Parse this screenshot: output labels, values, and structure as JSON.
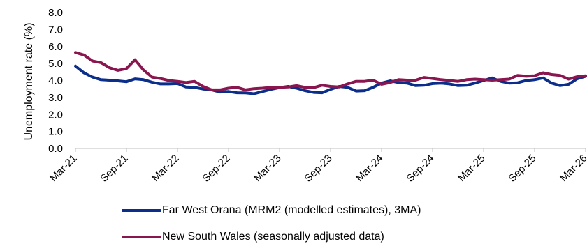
{
  "chart_data": {
    "type": "line",
    "title": "",
    "xlabel": "",
    "ylabel": "Unemployment rate (%)",
    "ylim": [
      0,
      8
    ],
    "yticks": [
      "0.0",
      "1.0",
      "2.0",
      "3.0",
      "4.0",
      "5.0",
      "6.0",
      "7.0",
      "8.0"
    ],
    "grid": false,
    "legend_position": "bottom",
    "x": [
      "Mar-21",
      "Apr-21",
      "May-21",
      "Jun-21",
      "Jul-21",
      "Aug-21",
      "Sep-21",
      "Oct-21",
      "Nov-21",
      "Dec-21",
      "Jan-22",
      "Feb-22",
      "Mar-22",
      "Apr-22",
      "May-22",
      "Jun-22",
      "Jul-22",
      "Aug-22",
      "Sep-22",
      "Oct-22",
      "Nov-22",
      "Dec-22",
      "Jan-23",
      "Feb-23",
      "Mar-23",
      "Apr-23",
      "May-23",
      "Jun-23",
      "Jul-23",
      "Aug-23",
      "Sep-23",
      "Oct-23",
      "Nov-23",
      "Dec-23",
      "Jan-24",
      "Feb-24",
      "Mar-24",
      "Apr-24",
      "May-24",
      "Jun-24",
      "Jul-24",
      "Aug-24",
      "Sep-24",
      "Oct-24",
      "Nov-24",
      "Dec-24",
      "Jan-25",
      "Feb-25",
      "Mar-25",
      "Apr-25",
      "May-25",
      "Jun-25",
      "Jul-25",
      "Aug-25",
      "Sep-25",
      "Oct-25",
      "Nov-25",
      "Dec-25",
      "Jan-26",
      "Feb-26",
      "Mar-26"
    ],
    "xtick_labels": [
      "Mar-21",
      "Sep-21",
      "Mar-22",
      "Sep-22",
      "Mar-23",
      "Sep-23",
      "Mar-24",
      "Sep-24",
      "Mar-25",
      "Sep-25",
      "Mar-26"
    ],
    "series": [
      {
        "name": "Far West Orana (MRM2 (modelled estimates), 3MA)",
        "color": "#0a2e8a",
        "values": [
          4.85,
          4.45,
          4.2,
          4.05,
          4.02,
          3.98,
          3.93,
          4.1,
          4.05,
          3.9,
          3.8,
          3.8,
          3.82,
          3.62,
          3.6,
          3.5,
          3.45,
          3.32,
          3.35,
          3.28,
          3.27,
          3.22,
          3.35,
          3.48,
          3.58,
          3.65,
          3.55,
          3.4,
          3.3,
          3.28,
          3.48,
          3.65,
          3.6,
          3.38,
          3.4,
          3.6,
          3.85,
          3.98,
          3.88,
          3.85,
          3.7,
          3.72,
          3.82,
          3.85,
          3.8,
          3.7,
          3.72,
          3.85,
          4.0,
          4.15,
          3.95,
          3.85,
          3.87,
          4.0,
          4.05,
          4.15,
          3.85,
          3.7,
          3.78,
          4.1,
          4.25
        ]
      },
      {
        "name": "New South Wales (seasonally adjusted data)",
        "color": "#8a1650",
        "values": [
          5.65,
          5.5,
          5.15,
          5.05,
          4.75,
          4.6,
          4.7,
          5.22,
          4.62,
          4.2,
          4.12,
          4.0,
          3.95,
          3.88,
          3.95,
          3.65,
          3.45,
          3.45,
          3.55,
          3.6,
          3.45,
          3.52,
          3.55,
          3.6,
          3.6,
          3.62,
          3.7,
          3.6,
          3.58,
          3.72,
          3.65,
          3.62,
          3.8,
          3.95,
          3.95,
          4.02,
          3.78,
          3.88,
          4.05,
          4.02,
          4.02,
          4.18,
          4.12,
          4.05,
          4.0,
          3.95,
          4.05,
          4.08,
          4.05,
          4.02,
          4.05,
          4.08,
          4.3,
          4.25,
          4.28,
          4.45,
          4.35,
          4.3,
          4.08,
          4.22,
          4.28
        ]
      }
    ]
  }
}
